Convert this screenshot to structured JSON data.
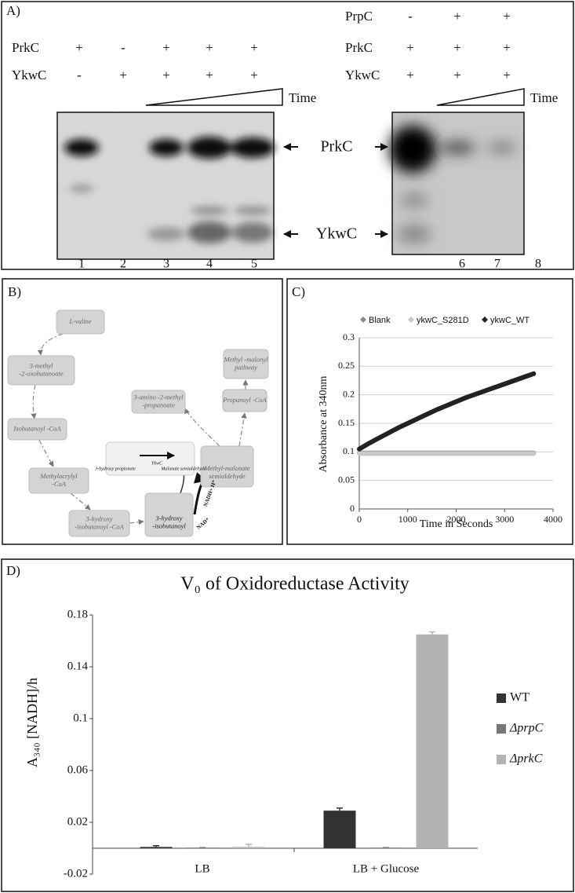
{
  "panel_a": {
    "label": "A)",
    "left": {
      "rows": [
        {
          "name": "PrkC",
          "signs": [
            "+",
            "-",
            "+",
            "+",
            "+"
          ]
        },
        {
          "name": "YkwC",
          "signs": [
            "-",
            "+",
            "+",
            "+",
            "+"
          ]
        }
      ],
      "time": "Time",
      "lanes": [
        1,
        2,
        3,
        4,
        5
      ]
    },
    "right": {
      "rows": [
        {
          "name": "PrpC",
          "signs": [
            "-",
            "+",
            "+"
          ]
        },
        {
          "name": "PrkC",
          "signs": [
            "+",
            "+",
            "+"
          ]
        },
        {
          "name": "YkwC",
          "signs": [
            "+",
            "+",
            "+"
          ]
        }
      ],
      "time": "Time",
      "lanes": [
        6,
        7,
        8
      ]
    },
    "bands": [
      "PrkC",
      "YkwC"
    ]
  },
  "panel_b": {
    "label": "B)",
    "nodes": [
      {
        "lines": [
          "L-valine"
        ]
      },
      {
        "lines": [
          "3-methyl",
          "-2-oxobutanoate"
        ]
      },
      {
        "lines": [
          "Isobutanoyl -CoA"
        ]
      },
      {
        "lines": [
          "Methylacrylyl",
          "-CoA"
        ]
      },
      {
        "lines": [
          "3-hydroxy",
          "-isobutanoyl -CoA"
        ]
      },
      {
        "lines": [
          "3-hydroxy",
          "-isobutanoyl"
        ]
      },
      {
        "lines": [
          "Methyl-malonate",
          "semialdehyde"
        ]
      },
      {
        "lines": [
          "Propanoyl -CoA"
        ]
      },
      {
        "lines": [
          "Methyl -malonyl",
          "pathway"
        ]
      },
      {
        "lines": [
          "3-amino -2-methyl",
          "-propanoate"
        ]
      }
    ],
    "inset": [
      "3-hydroxy propionate",
      "YkwC",
      "Malonate semialdehyde"
    ],
    "cofactors": [
      "NAD⁺",
      "NADH+ H⁺"
    ]
  },
  "chart_data": [
    {
      "type": "line",
      "label": "C)",
      "xlabel": "Time in Seconds",
      "ylabel": "Absorbance at 340nm",
      "x": [
        0,
        200,
        400,
        600,
        800,
        1000,
        1200,
        1400,
        1600,
        1800,
        2000,
        2200,
        2400,
        2600,
        2800,
        3000,
        3200,
        3400,
        3600
      ],
      "series": [
        {
          "name": "Blank",
          "color": "#8a8a8a",
          "values": [
            0.098,
            0.098,
            0.098,
            0.098,
            0.098,
            0.098,
            0.098,
            0.098,
            0.098,
            0.098,
            0.098,
            0.098,
            0.098,
            0.098,
            0.098,
            0.098,
            0.098,
            0.098,
            0.098
          ]
        },
        {
          "name": "ykwC_S281D",
          "color": "#c8c8c8",
          "values": [
            0.097,
            0.097,
            0.097,
            0.097,
            0.097,
            0.097,
            0.097,
            0.097,
            0.097,
            0.097,
            0.097,
            0.097,
            0.097,
            0.097,
            0.097,
            0.097,
            0.097,
            0.097,
            0.097
          ]
        },
        {
          "name": "ykwC_WT",
          "color": "#222222",
          "values": [
            0.105,
            0.115,
            0.124,
            0.133,
            0.142,
            0.15,
            0.158,
            0.166,
            0.174,
            0.181,
            0.188,
            0.195,
            0.201,
            0.207,
            0.213,
            0.219,
            0.225,
            0.231,
            0.237
          ]
        }
      ],
      "xlim": [
        0,
        4000
      ],
      "xticks": [
        0,
        1000,
        2000,
        3000,
        4000
      ],
      "ylim": [
        0,
        0.3
      ],
      "yticks": [
        0,
        0.05,
        0.1,
        0.15,
        0.2,
        0.25,
        0.3
      ],
      "grid": true,
      "legend": "top"
    },
    {
      "type": "bar",
      "label": "D)",
      "title": "V₀ of Oxidoreductase Activity",
      "ylabel": "A₃₄₀ [NADH]/h",
      "categories": [
        "LB",
        "LB + Glucose"
      ],
      "series": [
        {
          "name": "WT",
          "color": "#333333",
          "values": [
            0.001,
            0.029
          ],
          "errors": [
            0.001,
            0.002
          ]
        },
        {
          "name": "ΔprpC",
          "color": "#777777",
          "values": [
            0.0005,
            0.0005
          ],
          "errors": [
            0,
            0
          ]
        },
        {
          "name": "ΔprkC",
          "color": "#b3b3b3",
          "values": [
            0.001,
            0.165
          ],
          "errors": [
            0.002,
            0.002
          ]
        }
      ],
      "ylim": [
        -0.02,
        0.18
      ],
      "yticks": [
        -0.02,
        0.02,
        0.06,
        0.1,
        0.14,
        0.18
      ],
      "legend": "right"
    }
  ]
}
